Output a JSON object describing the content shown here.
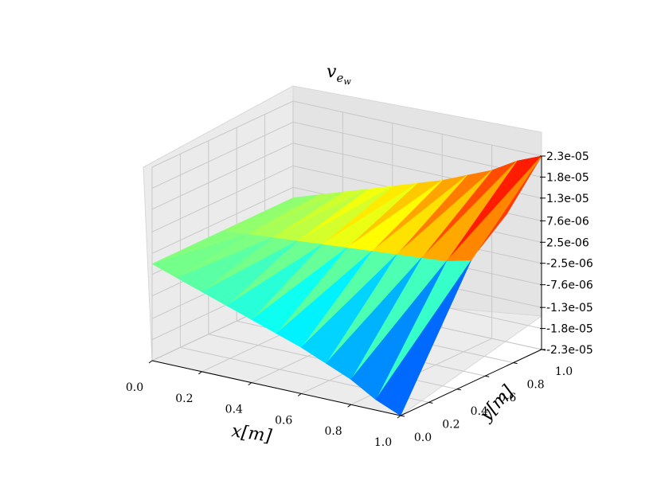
{
  "chart_data": {
    "type": "surface3d",
    "title": "v_{e_w}",
    "title_parts": {
      "base": "v",
      "sub": "e",
      "subsub": "w"
    },
    "xlabel": "x[m]",
    "ylabel": "y[m]",
    "xlim": [
      0,
      1
    ],
    "ylim": [
      0,
      1
    ],
    "zlim": [
      -2.3e-05,
      2.3e-05
    ],
    "x_ticks": [
      "0.0",
      "0.2",
      "0.4",
      "0.6",
      "0.8",
      "1.0"
    ],
    "y_ticks": [
      "0.0",
      "0.2",
      "0.4",
      "0.6",
      "0.8",
      "1.0"
    ],
    "z_ticks": [
      {
        "value": 2.3e-05,
        "label": "2.3e-05"
      },
      {
        "value": 1.8e-05,
        "label": "1.8e-05"
      },
      {
        "value": 1.3e-05,
        "label": "1.3e-05"
      },
      {
        "value": 7.6e-06,
        "label": "7.6e-06"
      },
      {
        "value": 2.5e-06,
        "label": "2.5e-06"
      },
      {
        "value": -2.5e-06,
        "label": "-2.5e-06"
      },
      {
        "value": -7.6e-06,
        "label": "-7.6e-06"
      },
      {
        "value": -1.3e-05,
        "label": "-1.3e-05"
      },
      {
        "value": -1.8e-05,
        "label": "-1.8e-05"
      },
      {
        "value": -2.3e-05,
        "label": "-2.3e-05"
      }
    ],
    "colormap": "jet",
    "grid": true,
    "surface": {
      "x": [
        0,
        0.1,
        0.2,
        0.3,
        0.4,
        0.5,
        0.6,
        0.7,
        0.8,
        0.9,
        1.0
      ],
      "y_top": 1.0,
      "y_mid": 0.5,
      "y_bottom": 0.0,
      "z_top": [
        0.0,
        2e-06,
        4e-06,
        6e-06,
        8e-06,
        1e-05,
        1.2e-05,
        1.45e-05,
        1.7e-05,
        2.05e-05,
        2.3e-05
      ],
      "z_mid": [
        0.0,
        5e-07,
        1e-06,
        1.5e-06,
        2e-06,
        2.5e-06,
        3e-06,
        3.5e-06,
        4e-06,
        4.5e-06,
        6e-06
      ],
      "z_bottom": [
        0.0,
        -2e-06,
        -4e-06,
        -6e-06,
        -8e-06,
        -1e-05,
        -1.2e-05,
        -1.45e-05,
        -1.7e-05,
        -2.05e-05,
        -2.3e-05
      ],
      "z_back_edge": [
        1.3e-05,
        7.6e-06
      ]
    }
  }
}
